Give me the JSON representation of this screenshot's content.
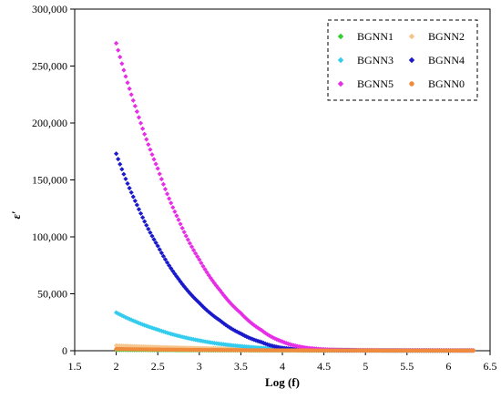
{
  "chart_data": {
    "type": "scatter",
    "xlabel": "Log (f)",
    "ylabel": "ε′",
    "xlim": [
      1.5,
      6.5
    ],
    "ylim": [
      0,
      300000
    ],
    "x_ticks": [
      "1.5",
      "2",
      "2.5",
      "3",
      "3.5",
      "4",
      "4.5",
      "5",
      "5.5",
      "6",
      "6.5"
    ],
    "y_ticks": [
      "0",
      "50,000",
      "100,000",
      "150,000",
      "200,000",
      "250,000",
      "300,000"
    ],
    "grid": false,
    "legend_position": "top-right",
    "series": [
      {
        "name": "BGNN1",
        "color": "#33cc33",
        "marker": "diamond",
        "x": [
          2.0,
          2.5,
          3.0,
          3.5,
          4.0,
          4.5,
          5.0,
          5.5,
          6.0,
          6.3
        ],
        "y": [
          800,
          600,
          450,
          350,
          250,
          200,
          150,
          120,
          100,
          90
        ]
      },
      {
        "name": "BGNN2",
        "color": "#f5c58c",
        "marker": "diamond",
        "x": [
          2.0,
          2.5,
          3.0,
          3.5,
          4.0,
          4.5,
          5.0,
          5.5,
          6.0,
          6.3
        ],
        "y": [
          4500,
          3200,
          2300,
          1700,
          1200,
          900,
          700,
          550,
          450,
          400
        ]
      },
      {
        "name": "BGNN3",
        "color": "#33ccee",
        "marker": "diamond",
        "x": [
          2.0,
          2.25,
          2.5,
          2.75,
          3.0,
          3.25,
          3.5,
          3.75,
          4.0,
          4.5,
          5.0,
          5.5,
          6.0,
          6.3
        ],
        "y": [
          33500,
          25000,
          18500,
          13000,
          9000,
          6000,
          4000,
          2500,
          1500,
          700,
          400,
          300,
          250,
          200
        ]
      },
      {
        "name": "BGNN4",
        "color": "#1a1acc",
        "marker": "diamond",
        "x": [
          2.0,
          2.25,
          2.5,
          2.75,
          3.0,
          3.25,
          3.5,
          3.75,
          4.0,
          4.25,
          4.5,
          5.0,
          5.5,
          6.0,
          6.3
        ],
        "y": [
          173000,
          128000,
          92000,
          63000,
          42000,
          26500,
          15000,
          7500,
          2500,
          1000,
          400,
          250,
          200,
          150,
          150
        ]
      },
      {
        "name": "BGNN5",
        "color": "#e62ee6",
        "marker": "diamond",
        "x": [
          2.0,
          2.25,
          2.5,
          2.75,
          3.0,
          3.25,
          3.5,
          3.75,
          4.0,
          4.25,
          4.5,
          4.75,
          5.0,
          5.5,
          6.0,
          6.3
        ],
        "y": [
          270000,
          210000,
          160000,
          115000,
          80000,
          53000,
          33000,
          18000,
          8000,
          3000,
          1200,
          600,
          400,
          300,
          250,
          200
        ]
      },
      {
        "name": "BGNN0",
        "color": "#f08a3c",
        "marker": "circle",
        "x": [
          2.0,
          2.5,
          3.0,
          3.5,
          4.0,
          4.5,
          5.0,
          5.5,
          6.0,
          6.3
        ],
        "y": [
          1500,
          1000,
          700,
          500,
          350,
          250,
          200,
          150,
          120,
          100
        ]
      }
    ]
  }
}
